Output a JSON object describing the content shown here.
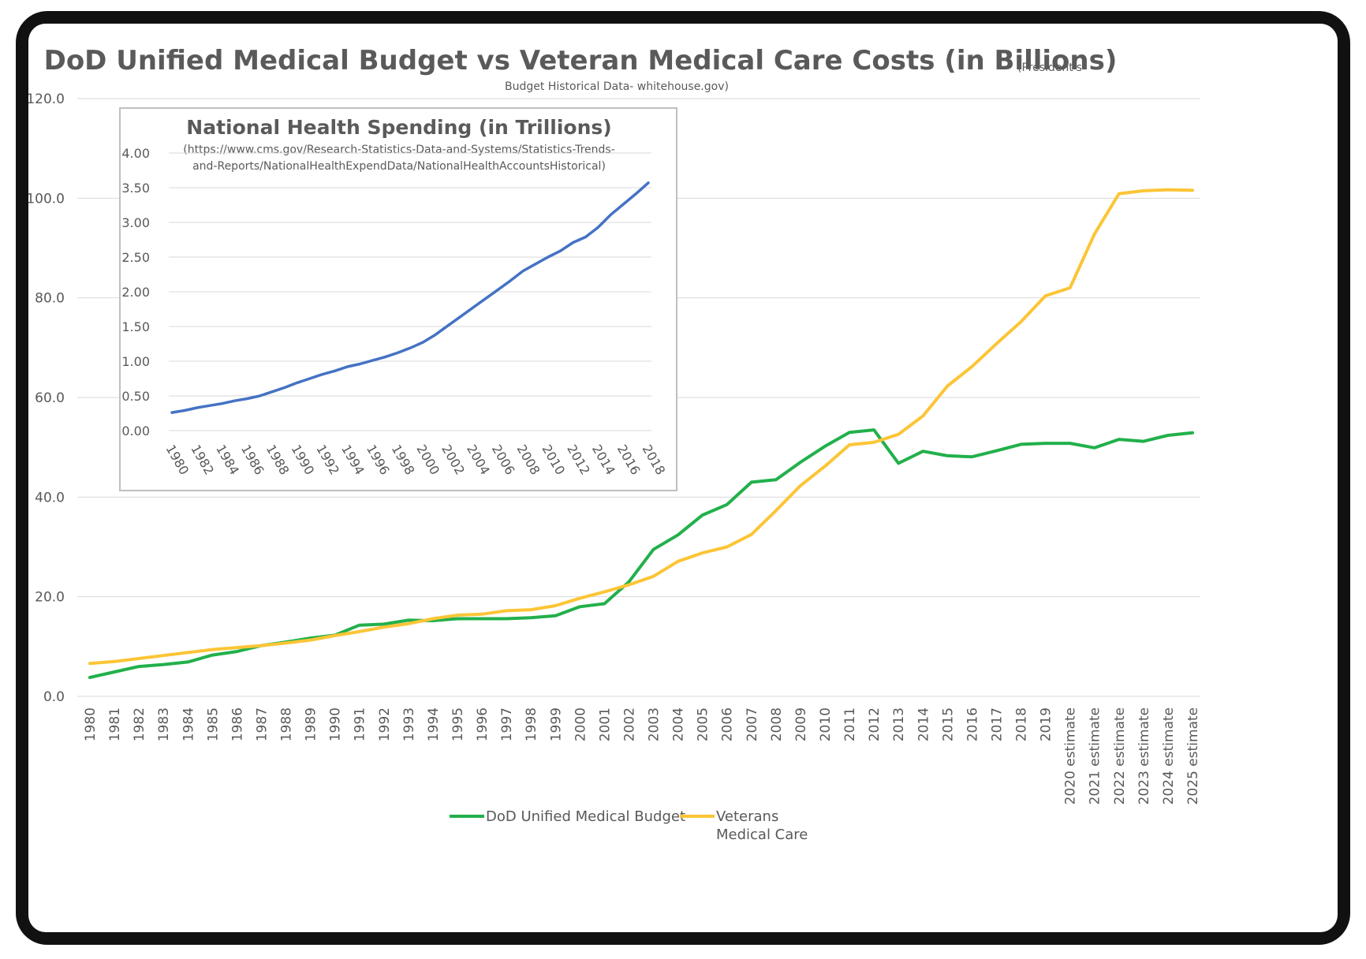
{
  "chart_data": [
    {
      "type": "line",
      "title": "DoD Unified Medical Budget vs Veteran Medical Care Costs (in Billions)",
      "subtitle_line1": "(President's",
      "subtitle_line2": "Budget Historical Data-  whitehouse.gov)",
      "ylim": [
        0,
        120
      ],
      "y_ticks": [
        "0.0",
        "20.0",
        "40.0",
        "60.0",
        "80.0",
        "100.0",
        "120.0"
      ],
      "y_tick_values": [
        0,
        20,
        40,
        60,
        80,
        100,
        120
      ],
      "grid": true,
      "legend_position": "bottom",
      "categories": [
        "1980",
        "1981",
        "1982",
        "1983",
        "1984",
        "1985",
        "1986",
        "1987",
        "1988",
        "1989",
        "1990",
        "1991",
        "1992",
        "1993",
        "1994",
        "1995",
        "1996",
        "1997",
        "1998",
        "1999",
        "2000",
        "2001",
        "2002",
        "2003",
        "2004",
        "2005",
        "2006",
        "2007",
        "2008",
        "2009",
        "2010",
        "2011",
        "2012",
        "2013",
        "2014",
        "2015",
        "2016",
        "2017",
        "2018",
        "2019",
        "2020 estimate",
        "2021 estimate",
        "2022 estimate",
        "2023 estimate",
        "2024 estimate",
        "2025 estimate"
      ],
      "series": [
        {
          "name": "DoD Unified Medical Budget",
          "color": "#22b04b",
          "values": [
            3.8,
            4.9,
            6.0,
            6.4,
            6.9,
            8.3,
            9.0,
            10.2,
            10.9,
            11.7,
            12.3,
            14.3,
            14.5,
            15.3,
            15.2,
            15.6,
            15.6,
            15.6,
            15.8,
            16.2,
            18.0,
            18.6,
            23.0,
            29.5,
            32.4,
            36.4,
            38.5,
            43.0,
            43.5,
            47.0,
            50.2,
            53.0,
            53.5,
            46.8,
            49.2,
            48.3,
            48.1,
            49.3,
            50.6,
            50.8,
            50.8,
            49.9,
            51.6,
            51.2,
            52.4,
            52.9
          ]
        },
        {
          "name_line1": "Veterans",
          "name_line2": "Medical Care",
          "color": "#fcc536",
          "values": [
            6.6,
            7.0,
            7.6,
            8.2,
            8.8,
            9.4,
            9.8,
            10.2,
            10.7,
            11.3,
            12.2,
            13.0,
            13.9,
            14.6,
            15.6,
            16.3,
            16.5,
            17.2,
            17.4,
            18.2,
            19.7,
            21.0,
            22.4,
            24.1,
            27.1,
            28.8,
            30.0,
            32.5,
            37.3,
            42.3,
            46.2,
            50.5,
            51.0,
            52.6,
            56.3,
            62.3,
            66.2,
            70.8,
            75.2,
            80.4,
            82.0,
            92.8,
            100.9,
            101.5,
            101.7,
            101.6
          ]
        }
      ]
    },
    {
      "type": "line",
      "title": "National Health Spending (in Trillions)",
      "subtitle_line1": "(https://www.cms.gov/Research-Statistics-Data-and-Systems/Statistics-Trends-",
      "subtitle_line2": "and-Reports/NationalHealthExpendData/NationalHealthAccountsHistorical)",
      "ylim": [
        0,
        4
      ],
      "y_ticks": [
        "0.00",
        "0.50",
        "1.00",
        "1.50",
        "2.00",
        "2.50",
        "3.00",
        "3.50",
        "4.00"
      ],
      "y_tick_values": [
        0,
        0.5,
        1,
        1.5,
        2,
        2.5,
        3,
        3.5,
        4
      ],
      "x_ticks": [
        "1980",
        "1982",
        "1984",
        "1986",
        "1988",
        "1990",
        "1992",
        "1994",
        "1996",
        "1998",
        "2000",
        "2002",
        "2004",
        "2006",
        "2008",
        "2010",
        "2012",
        "2014",
        "2016",
        "2018"
      ],
      "grid": true,
      "series": [
        {
          "color": "#4472c4",
          "x": [
            1980,
            1981,
            1982,
            1983,
            1984,
            1985,
            1986,
            1987,
            1988,
            1989,
            1990,
            1991,
            1992,
            1993,
            1994,
            1995,
            1996,
            1997,
            1998,
            1999,
            2000,
            2001,
            2002,
            2003,
            2004,
            2005,
            2006,
            2007,
            2008,
            2009,
            2010,
            2011,
            2012,
            2013,
            2014,
            2015,
            2016,
            2017,
            2018
          ],
          "values": [
            0.26,
            0.29,
            0.33,
            0.36,
            0.39,
            0.43,
            0.46,
            0.5,
            0.56,
            0.62,
            0.69,
            0.75,
            0.81,
            0.86,
            0.92,
            0.96,
            1.01,
            1.06,
            1.12,
            1.19,
            1.27,
            1.38,
            1.51,
            1.64,
            1.77,
            1.9,
            2.03,
            2.16,
            2.3,
            2.4,
            2.5,
            2.59,
            2.71,
            2.79,
            2.93,
            3.11,
            3.26,
            3.41,
            3.57
          ]
        }
      ]
    }
  ]
}
